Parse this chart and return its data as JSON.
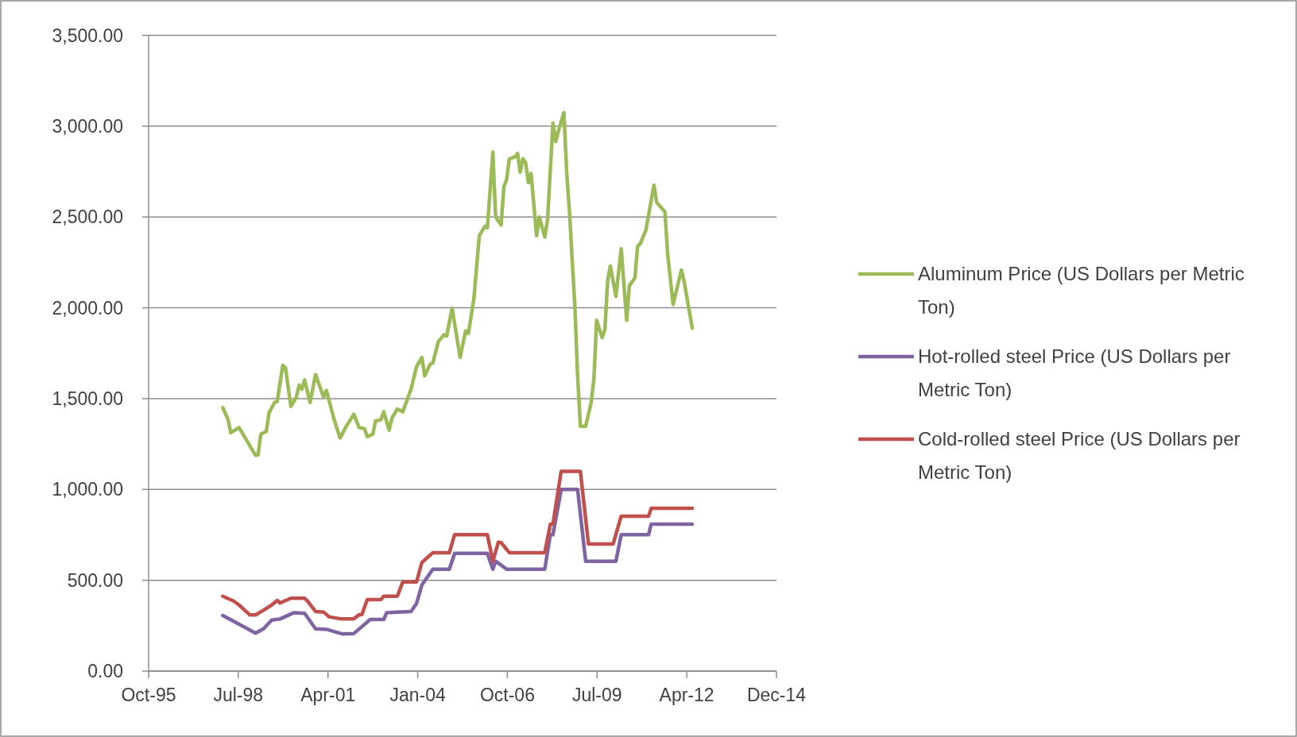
{
  "chart_data": {
    "type": "line",
    "xlim": [
      "1995-10-28",
      "2014-12-27"
    ],
    "xticks": [
      {
        "value": "1995-10-28",
        "label": "Oct-95"
      },
      {
        "value": "1998-07-23",
        "label": "Jul-98"
      },
      {
        "value": "2001-04-19",
        "label": "Apr-01"
      },
      {
        "value": "2004-01-14",
        "label": "Jan-04"
      },
      {
        "value": "2006-10-10",
        "label": "Oct-06"
      },
      {
        "value": "2009-07-06",
        "label": "Jul-09"
      },
      {
        "value": "2012-04-01",
        "label": "Apr-12"
      },
      {
        "value": "2014-12-27",
        "label": "Dec-14"
      }
    ],
    "ylim": [
      0,
      3500
    ],
    "yticks": [
      {
        "value": 0,
        "label": "0.00"
      },
      {
        "value": 500,
        "label": "500.00"
      },
      {
        "value": 1000,
        "label": "1,000.00"
      },
      {
        "value": 1500,
        "label": "1,500.00"
      },
      {
        "value": 2000,
        "label": "2,000.00"
      },
      {
        "value": 2500,
        "label": "2,500.00"
      },
      {
        "value": 3000,
        "label": "3,000.00"
      },
      {
        "value": 3500,
        "label": "3,500.00"
      }
    ],
    "grid": "y",
    "legend": "right",
    "line_style": "solid",
    "marker": "none",
    "series": [
      {
        "name": "Aluminum Price (US Dollars per Metric Ton)",
        "color": "#9bbb59",
        "x": [
          "1998-02",
          "1998-04",
          "1998-05",
          "1998-08",
          "1998-10",
          "1999-02",
          "1999-03",
          "1999-04",
          "1999-06",
          "1999-07",
          "1999-09",
          "1999-10",
          "1999-12",
          "2000-01",
          "2000-03",
          "2000-05",
          "2000-06",
          "2000-07",
          "2000-08",
          "2000-10",
          "2000-12",
          "2001-03",
          "2001-04",
          "2001-07",
          "2001-09",
          "2001-11",
          "2002-02",
          "2002-04",
          "2002-06",
          "2002-07",
          "2002-09",
          "2002-10",
          "2002-12",
          "2003-01",
          "2003-03",
          "2003-04",
          "2003-06",
          "2003-08",
          "2003-11",
          "2004-01",
          "2004-03",
          "2004-04",
          "2004-06",
          "2004-07",
          "2004-09",
          "2004-11",
          "2004-12",
          "2005-02",
          "2005-05",
          "2005-07",
          "2005-08",
          "2005-10",
          "2005-12",
          "2006-02",
          "2006-03",
          "2006-05",
          "2006-06",
          "2006-08",
          "2006-09",
          "2006-10",
          "2006-11",
          "2007-01",
          "2007-02",
          "2007-03",
          "2007-04",
          "2007-05",
          "2007-06",
          "2007-07",
          "2007-09",
          "2007-10",
          "2007-12",
          "2008-01",
          "2008-03",
          "2008-04",
          "2008-05",
          "2008-07",
          "2008-08",
          "2008-09",
          "2008-11",
          "2008-12",
          "2009-01",
          "2009-03",
          "2009-05",
          "2009-06",
          "2009-07",
          "2009-09",
          "2009-10",
          "2009-11",
          "2009-12",
          "2010-02",
          "2010-04",
          "2010-06",
          "2010-07",
          "2010-09",
          "2010-10",
          "2010-11",
          "2011-01",
          "2011-04",
          "2011-05",
          "2011-08",
          "2011-09",
          "2011-11",
          "2012-02",
          "2012-03",
          "2012-06"
        ],
        "values": [
          1450,
          1385,
          1312,
          1341,
          1290,
          1188,
          1190,
          1304,
          1319,
          1421,
          1479,
          1484,
          1683,
          1670,
          1457,
          1508,
          1574,
          1552,
          1603,
          1479,
          1632,
          1508,
          1545,
          1377,
          1283,
          1341,
          1414,
          1341,
          1334,
          1290,
          1305,
          1377,
          1385,
          1428,
          1326,
          1392,
          1443,
          1428,
          1552,
          1676,
          1727,
          1625,
          1690,
          1697,
          1815,
          1851,
          1844,
          1997,
          1727,
          1873,
          1858,
          2048,
          2397,
          2448,
          2441,
          2857,
          2500,
          2456,
          2667,
          2704,
          2820,
          2830,
          2850,
          2747,
          2820,
          2800,
          2689,
          2740,
          2397,
          2500,
          2390,
          2485,
          3017,
          2915,
          2973,
          3075,
          2747,
          2529,
          2004,
          1625,
          1348,
          1348,
          1479,
          1610,
          1931,
          1836,
          1880,
          2150,
          2230,
          2063,
          2325,
          1931,
          2121,
          2165,
          2339,
          2354,
          2427,
          2675,
          2580,
          2529,
          2296,
          2019,
          2208,
          2150,
          1888
        ]
      },
      {
        "name": "Hot-rolled steel Price (US Dollars per Metric Ton)",
        "color": "#8064a2",
        "x": [
          "1998-02",
          "1998-07",
          "1999-02",
          "1999-05",
          "1999-08",
          "1999-11",
          "2000-04",
          "2000-08",
          "2000-12",
          "2001-04",
          "2001-10",
          "2002-02",
          "2002-07",
          "2002-08",
          "2003-01",
          "2003-02",
          "2003-11",
          "2004-01",
          "2004-03",
          "2004-07",
          "2005-01",
          "2005-03",
          "2006-03",
          "2006-05",
          "2006-06",
          "2006-10",
          "2007-12",
          "2008-02",
          "2008-03",
          "2008-06",
          "2008-12",
          "2009-03",
          "2010-02",
          "2010-04",
          "2011-02",
          "2011-03",
          "2012-06"
        ],
        "values": [
          306,
          267,
          209,
          233,
          281,
          287,
          321,
          318,
          233,
          230,
          204,
          207,
          270,
          284,
          284,
          321,
          328,
          372,
          474,
          561,
          561,
          648,
          648,
          561,
          605,
          561,
          561,
          751,
          751,
          1000,
          1000,
          605,
          605,
          751,
          751,
          809,
          809
        ]
      },
      {
        "name": "Cold-rolled steel Price (US Dollars per Metric Ton)",
        "color": "#c0504d",
        "x": [
          "1998-02",
          "1998-06",
          "1998-08",
          "1998-12",
          "1999-02",
          "1999-05",
          "1999-08",
          "1999-10",
          "1999-11",
          "2000-03",
          "2000-08",
          "2000-09",
          "2000-12",
          "2001-03",
          "2001-05",
          "2001-09",
          "2002-02",
          "2002-04",
          "2002-05",
          "2002-07",
          "2002-12",
          "2003-01",
          "2003-06",
          "2003-08",
          "2004-01",
          "2004-03",
          "2004-07",
          "2005-01",
          "2005-03",
          "2006-03",
          "2006-05",
          "2006-07",
          "2006-08",
          "2006-11",
          "2007-12",
          "2008-02",
          "2008-03",
          "2008-06",
          "2009-01",
          "2009-04",
          "2010-01",
          "2010-04",
          "2011-02",
          "2011-03",
          "2012-06"
        ],
        "values": [
          412,
          386,
          364,
          309,
          309,
          335,
          364,
          389,
          375,
          401,
          401,
          386,
          328,
          325,
          299,
          288,
          288,
          310,
          310,
          394,
          394,
          412,
          412,
          491,
          491,
          598,
          652,
          652,
          751,
          751,
          605,
          710,
          707,
          652,
          652,
          809,
          809,
          1100,
          1100,
          700,
          700,
          853,
          853,
          896,
          896
        ]
      }
    ]
  }
}
